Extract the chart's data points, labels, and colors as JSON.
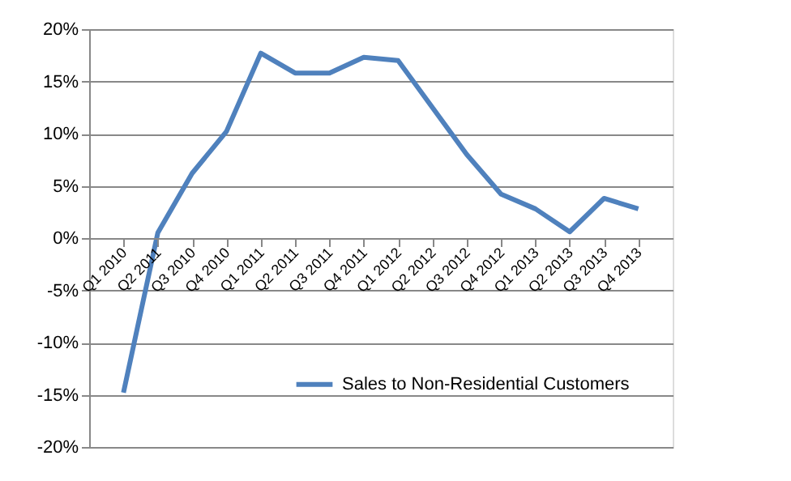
{
  "chart_data": {
    "type": "line",
    "categories": [
      "Q1 2010",
      "Q2 2011",
      "Q3 2010",
      "Q4 2010",
      "Q1 2011",
      "Q2 2011",
      "Q3 2011",
      "Q4 2011",
      "Q1 2012",
      "Q2 2012",
      "Q3 2012",
      "Q4 2012",
      "Q1 2013",
      "Q2 2013",
      "Q3 2013",
      "Q4 2013"
    ],
    "series": [
      {
        "name": "Sales to Non-Residential Customers",
        "color": "#4f81bd",
        "values": [
          -14.8,
          0.5,
          6.2,
          10.2,
          17.7,
          15.8,
          15.8,
          17.3,
          17.0,
          12.5,
          8.0,
          4.2,
          2.8,
          0.6,
          3.8,
          2.8
        ]
      }
    ],
    "ylim": [
      -20,
      20
    ],
    "yticks": [
      {
        "value": -20,
        "label": "-20%"
      },
      {
        "value": -15,
        "label": "-15%"
      },
      {
        "value": -10,
        "label": "-10%"
      },
      {
        "value": -5,
        "label": "-5%"
      },
      {
        "value": 0,
        "label": "0%"
      },
      {
        "value": 5,
        "label": "5%"
      },
      {
        "value": 10,
        "label": "10%"
      },
      {
        "value": 15,
        "label": "15%"
      },
      {
        "value": 20,
        "label": "20%"
      }
    ],
    "grid": "y",
    "legend": "bottom",
    "marker": "none",
    "line_style": "solid"
  }
}
